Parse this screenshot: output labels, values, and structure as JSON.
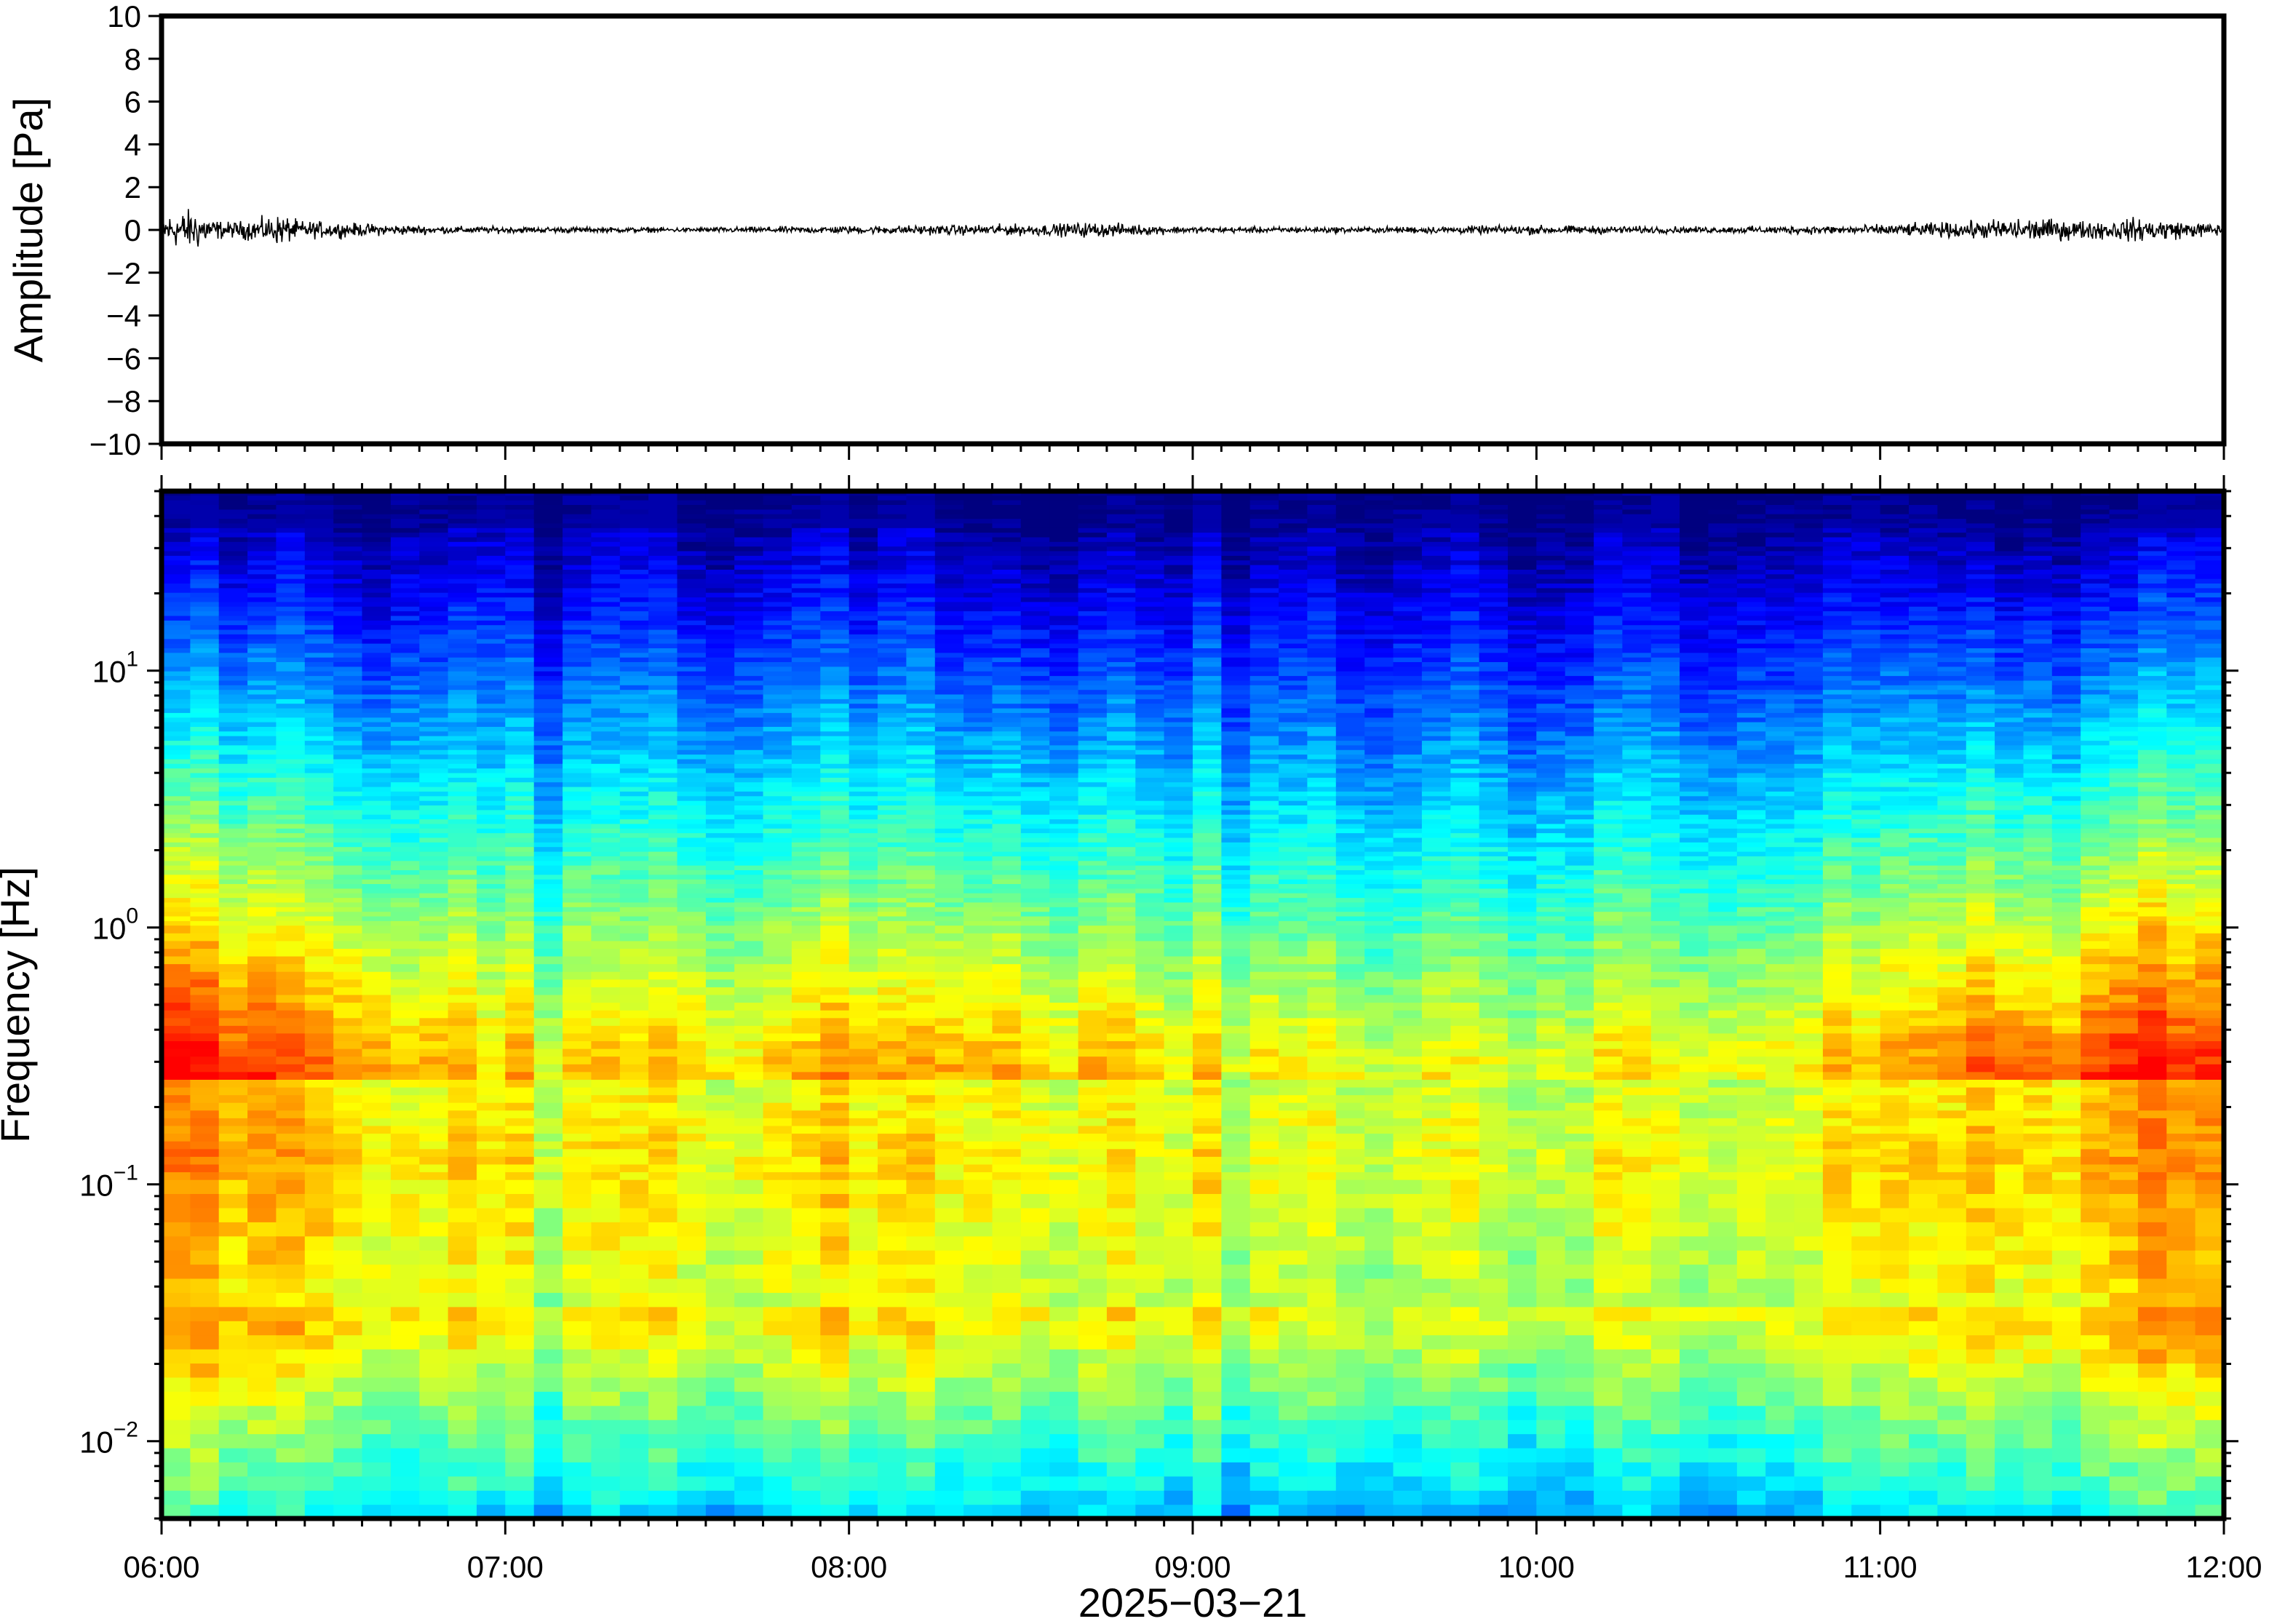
{
  "chart_data": [
    {
      "type": "line",
      "panel": "waveform",
      "ylabel": "Amplitude [Pa]",
      "ylim": [
        -10,
        10
      ],
      "yticks": [
        10,
        8,
        6,
        4,
        2,
        0,
        -2,
        -4,
        -6,
        -8,
        -10
      ],
      "ytick_labels": [
        "10",
        "8",
        "6",
        "4",
        "2",
        "0",
        "−2",
        "−4",
        "−6",
        "−8",
        "−10"
      ],
      "xlim_hours": [
        6,
        12
      ],
      "envelope": {
        "hours": [
          6.0,
          6.05,
          6.1,
          6.15,
          6.2,
          6.3,
          6.35,
          6.4,
          6.5,
          6.6,
          6.8,
          7.1,
          7.5,
          8.2,
          8.6,
          8.7,
          9.0,
          9.5,
          10.0,
          10.5,
          10.9,
          11.0,
          11.2,
          11.3,
          11.4,
          11.5,
          11.6,
          11.8,
          11.9,
          12.0
        ],
        "amplitude_pa": [
          1.0,
          1.2,
          1.4,
          0.7,
          0.5,
          0.8,
          1.0,
          0.6,
          0.5,
          0.4,
          0.25,
          0.2,
          0.15,
          0.3,
          0.4,
          0.5,
          0.2,
          0.2,
          0.3,
          0.2,
          0.3,
          0.35,
          0.5,
          0.6,
          0.8,
          0.7,
          0.6,
          0.8,
          0.5,
          0.4
        ]
      }
    },
    {
      "type": "heatmap",
      "panel": "spectrogram",
      "ylabel": "Frequency [Hz]",
      "yscale": "log",
      "ylim_hz": [
        0.005,
        50
      ],
      "yticks": [
        {
          "base": "10",
          "exp": "1",
          "value": 10
        },
        {
          "base": "10",
          "exp": "0",
          "value": 1
        },
        {
          "base": "10",
          "exp": "−1",
          "value": 0.1
        },
        {
          "base": "10",
          "exp": "−2",
          "value": 0.01
        }
      ],
      "xlim_hours": [
        6,
        12
      ],
      "colormap": "jet-like (dark blue low to red high)",
      "relative_power_by_hour": {
        "hours": [
          6.0,
          6.5,
          7.0,
          7.5,
          8.0,
          8.5,
          9.0,
          9.5,
          10.0,
          10.5,
          11.0,
          11.5,
          12.0
        ],
        "weights": [
          1.0,
          0.6,
          0.2,
          0.3,
          0.35,
          0.4,
          0.3,
          0.1,
          0.1,
          0.2,
          0.35,
          0.75,
          0.8
        ]
      }
    }
  ],
  "x_axis": {
    "tick_labels": [
      "06:00",
      "07:00",
      "08:00",
      "09:00",
      "10:00",
      "11:00",
      "12:00"
    ],
    "title": "2025−03−21"
  },
  "colors": {
    "background": "#ffffff",
    "frame": "#000000",
    "trace": "#000000",
    "colormap_stops": [
      "#00007f",
      "#0000ff",
      "#007fff",
      "#00ffff",
      "#7fff7f",
      "#ffff00",
      "#ff7f00",
      "#ff0000"
    ]
  }
}
